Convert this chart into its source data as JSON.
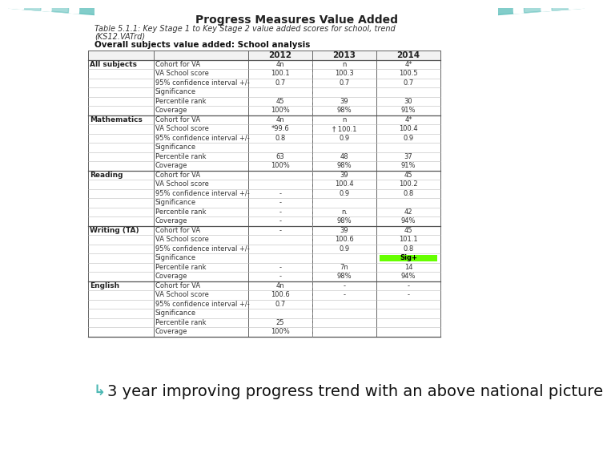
{
  "title": "Progress Measures Value Added",
  "subtitle1": "Table 5.1.1: Key Stage 1 to Key Stage 2 value added scores for school, trend",
  "subtitle2": "(KS12.VATrd)",
  "subtitle3": "Overall subjects value added: School analysis",
  "bg_color": "#ffffff",
  "teal_color": "#4db8b4",
  "header_years": [
    "2012",
    "2013",
    "2014"
  ],
  "sections": [
    {
      "subject": "All subjects",
      "rows": [
        [
          "Cohort for VA",
          "4n",
          "n",
          "4*"
        ],
        [
          "VA School score",
          "100.1",
          "100.3",
          "100.5"
        ],
        [
          "95% confidence interval +/-",
          "0.7",
          "0.7",
          "0.7"
        ],
        [
          "Significance",
          "",
          "",
          ""
        ],
        [
          "Percentile rank",
          "45",
          "39",
          "30"
        ],
        [
          "Coverage",
          "100%",
          "98%",
          "91%"
        ]
      ]
    },
    {
      "subject": "Mathematics",
      "rows": [
        [
          "Cohort for VA",
          "4n",
          "n",
          "4*"
        ],
        [
          "VA School score",
          "*99.6",
          "† 100.1",
          "100.4"
        ],
        [
          "95% confidence interval +/-",
          "0.8",
          "0.9",
          "0.9"
        ],
        [
          "Significance",
          "",
          "",
          ""
        ],
        [
          "Percentile rank",
          "63",
          "48",
          "37"
        ],
        [
          "Coverage",
          "100%",
          "98%",
          "91%"
        ]
      ]
    },
    {
      "subject": "Reading",
      "rows": [
        [
          "Cohort for VA",
          "",
          "39",
          "45"
        ],
        [
          "VA School score",
          "",
          "100.4",
          "100.2"
        ],
        [
          "95% confidence interval +/-",
          "-",
          "0.9",
          "0.8"
        ],
        [
          "Significance",
          "-",
          "",
          ""
        ],
        [
          "Percentile rank",
          "-",
          "n.",
          "42"
        ],
        [
          "Coverage",
          "-",
          "98%",
          "94%"
        ]
      ]
    },
    {
      "subject": "Writing (TA)",
      "rows": [
        [
          "Cohort for VA",
          "-",
          "39",
          "45"
        ],
        [
          "VA School score",
          "",
          "100.6",
          "101.1"
        ],
        [
          "95% confidence interval +/-",
          "",
          "0.9",
          "0.8"
        ],
        [
          "Significance",
          "",
          "",
          "Sig+"
        ],
        [
          "Percentile rank",
          "-",
          "7n",
          "14"
        ],
        [
          "Coverage",
          "-",
          "98%",
          "94%"
        ]
      ]
    },
    {
      "subject": "English",
      "rows": [
        [
          "Cohort for VA",
          "4n",
          "-",
          "-"
        ],
        [
          "VA School score",
          "100.6",
          "-",
          "-"
        ],
        [
          "95% confidence interval +/-",
          "0.7",
          "",
          ""
        ],
        [
          "Significance",
          "",
          "",
          ""
        ],
        [
          "Percentile rank",
          "25",
          "",
          ""
        ],
        [
          "Coverage",
          "100%",
          "",
          ""
        ]
      ]
    }
  ],
  "sig_plus_color": "#66ff00",
  "sig_plus_text_color": "#000000",
  "bullet_text": "3 year improving progress trend with an above national picture",
  "bullet_color": "#4db8b4",
  "bullet_fontsize": 14
}
